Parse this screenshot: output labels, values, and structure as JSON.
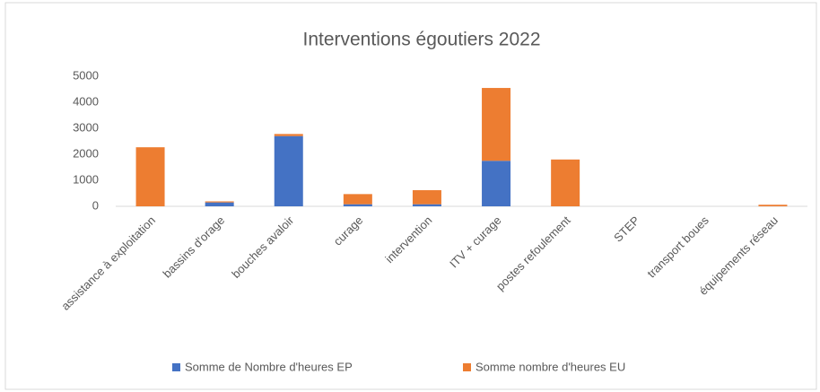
{
  "chart_data": {
    "type": "stacked_bar",
    "title": "Interventions égoutiers 2022",
    "categories": [
      "assistance à exploitation",
      "bassins d'orage",
      "bouches avaloir",
      "curage",
      "intervention",
      "ITV + curage",
      "postes refoulement",
      "STEP",
      "transport boues",
      "équipements réseau"
    ],
    "series": [
      {
        "name": "Somme de Nombre d'heures EP",
        "color": "#4472c4",
        "values": [
          0,
          150,
          2700,
          80,
          80,
          1750,
          0,
          0,
          0,
          0
        ]
      },
      {
        "name": "Somme nombre d'heures EU",
        "color": "#ed7d31",
        "values": [
          2270,
          40,
          80,
          390,
          540,
          2800,
          1800,
          0,
          0,
          60
        ]
      }
    ],
    "ylim": [
      0,
      5000
    ],
    "yticks": [
      0,
      1000,
      2000,
      3000,
      4000,
      5000
    ],
    "grid": false,
    "legend": "bottom"
  }
}
